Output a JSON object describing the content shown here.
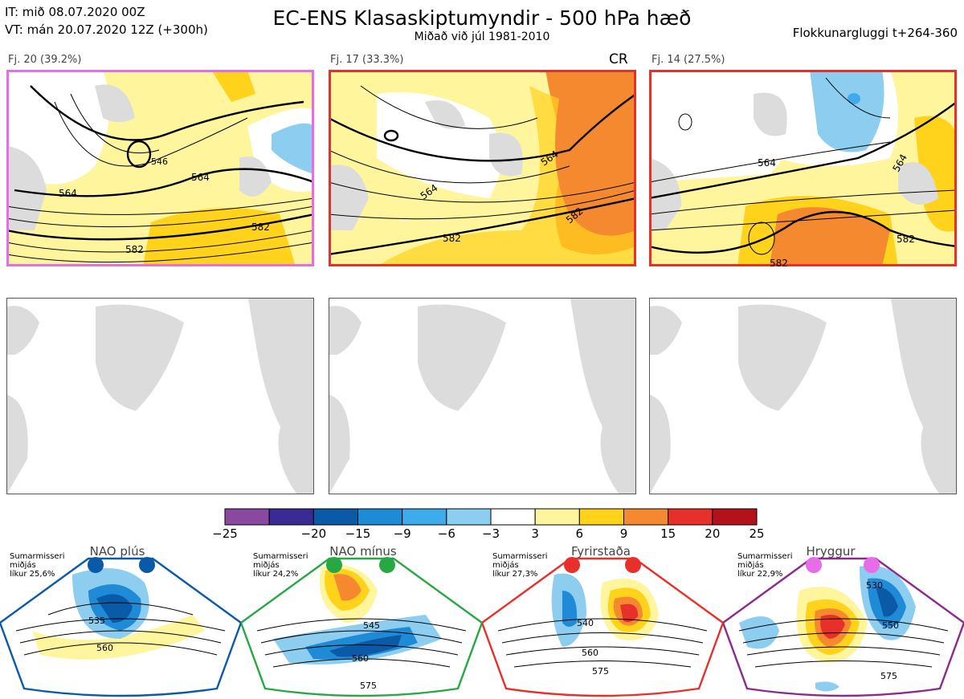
{
  "header": {
    "it": "IT: mið 08.07.2020 00Z",
    "vt": "VT: mán 20.07.2020 12Z  (+300h)",
    "title": "EC-ENS Klasaskiptumyndir - 500 hPa hæð",
    "subtitle": "Miðað við júl 1981-2010",
    "window": "Flokkunargluggi t+264-360"
  },
  "clusters": [
    {
      "label": "Fj. 20 (39.2%)",
      "border": "#e86be8",
      "contours": [
        "564",
        "546",
        "564",
        "582",
        "582"
      ]
    },
    {
      "label": "Fj. 17 (33.3%)",
      "border": "#e8302a",
      "flag": "CR",
      "contours": [
        "564",
        "564",
        "582",
        "582"
      ]
    },
    {
      "label": "Fj. 14 (27.5%)",
      "border": "#e8302a",
      "contours": [
        "564",
        "564",
        "582",
        "582"
      ]
    }
  ],
  "colorbar": {
    "ticks": [
      "−25",
      "−20",
      "−15",
      "−9",
      "−6",
      "−3",
      "3",
      "6",
      "9",
      "15",
      "20",
      "25"
    ],
    "colors": [
      "#8b48a0",
      "#3a2b94",
      "#0a5aa8",
      "#1f8ad6",
      "#3eacea",
      "#8ccdf0",
      "#ffffff",
      "#fef59c",
      "#ffd21c",
      "#f4892f",
      "#e8302a",
      "#b3121a"
    ]
  },
  "patterns": [
    {
      "title": "NAO plús",
      "season": "Sumarmisseri",
      "line2": "miðjás",
      "prob": "líkur 25,6%",
      "color": "#0a5aa8",
      "dot_color": "#0a5aa8",
      "contours": [
        "535",
        "560"
      ]
    },
    {
      "title": "NAO mínus",
      "season": "Sumarmisseri",
      "line2": "miðjás",
      "prob": "líkur 24,2%",
      "color": "#27a844",
      "dot_color": "#27a844",
      "contours": [
        "545",
        "560",
        "575"
      ]
    },
    {
      "title": "Fyrirstaða",
      "season": "Sumarmisseri",
      "line2": "miðjás",
      "prob": "líkur 27,3%",
      "color": "#e8302a",
      "dot_color": "#e8302a",
      "contours": [
        "540",
        "560",
        "575"
      ]
    },
    {
      "title": "Hryggur",
      "season": "Sumarmisseri",
      "line2": "miðjás",
      "prob": "líkur 22,9%",
      "color": "#8b2a8b",
      "dot_color": "#e86be8",
      "contours": [
        "530",
        "550",
        "575"
      ]
    }
  ],
  "chart_data": {
    "type": "heatmap",
    "title": "EC-ENS Klasaskiptumyndir - 500 hPa hæð",
    "colorbar_bounds": [
      -25,
      -20,
      -15,
      -9,
      -6,
      -3,
      3,
      6,
      9,
      15,
      20,
      25
    ],
    "clusters": [
      {
        "name": "Fj. 20",
        "members": 20,
        "percent": 39.2
      },
      {
        "name": "Fj. 17",
        "members": 17,
        "percent": 33.3
      },
      {
        "name": "Fj. 14",
        "members": 14,
        "percent": 27.5
      }
    ],
    "regimes": [
      {
        "name": "NAO plús",
        "probability": 25.6
      },
      {
        "name": "NAO mínus",
        "probability": 24.2
      },
      {
        "name": "Fyrirstaða",
        "probability": 27.3
      },
      {
        "name": "Hryggur",
        "probability": 22.9
      }
    ]
  }
}
